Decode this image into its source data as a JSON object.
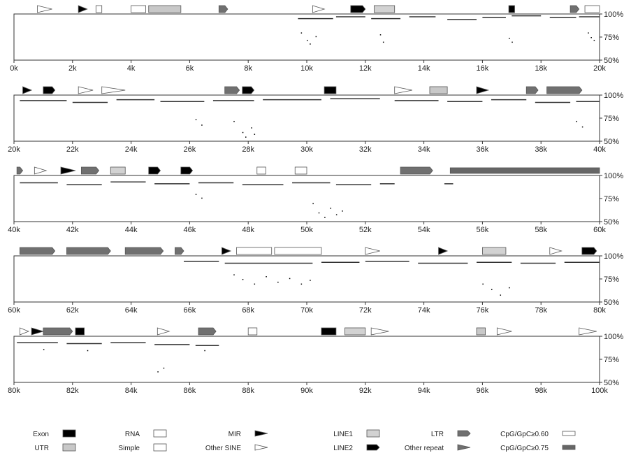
{
  "colors": {
    "exon": "#000000",
    "utr": "#c8c8c8",
    "rna": "#ffffff",
    "simple": "#ffffff",
    "mir": "#000000",
    "other_sine": "#ffffff",
    "line1": "#d2d2d2",
    "line2": "#000000",
    "ltr": "#707070",
    "other_repeat": "#707070",
    "cpg_060": "#ffffff",
    "cpg_075": "#666666",
    "outline": "#555555",
    "dot": "#000000"
  },
  "legend": {
    "col1": [
      "Exon",
      "UTR"
    ],
    "col2": [
      "RNA",
      "Simple"
    ],
    "col3": [
      "MIR",
      "Other SINE"
    ],
    "col4": [
      "LINE1",
      "LINE2"
    ],
    "col5": [
      "LTR",
      "Other repeat"
    ],
    "col6": [
      "CpG/GpC≥0.60",
      "CpG/GpC≥0.75"
    ]
  },
  "chart_data": {
    "type": "scatter",
    "title": "",
    "xlabel": "",
    "ylabel": "",
    "x_unit": "k",
    "ylim": [
      50,
      100
    ],
    "y_ticks": [
      "100%",
      "75%",
      "50%"
    ],
    "panels": [
      {
        "xlim": [
          0,
          20
        ],
        "x_ticks": [
          "0k",
          "2k",
          "4k",
          "6k",
          "8k",
          "10k",
          "12k",
          "14k",
          "16k",
          "18k",
          "20k"
        ],
        "segments": [
          [
            9.7,
            10.9,
            95
          ],
          [
            11.0,
            12.0,
            97
          ],
          [
            12.2,
            13.2,
            95
          ],
          [
            13.5,
            14.4,
            97
          ],
          [
            14.8,
            15.8,
            94
          ],
          [
            16.0,
            16.8,
            96
          ],
          [
            17.0,
            18.0,
            98
          ],
          [
            18.3,
            19.2,
            96
          ],
          [
            19.3,
            20,
            97
          ]
        ],
        "scatter": [
          [
            9.8,
            80
          ],
          [
            10.0,
            72
          ],
          [
            10.1,
            68
          ],
          [
            10.3,
            76
          ],
          [
            12.5,
            78
          ],
          [
            12.6,
            70
          ],
          [
            16.9,
            74
          ],
          [
            17.0,
            70
          ],
          [
            19.6,
            80
          ],
          [
            19.7,
            75
          ],
          [
            19.8,
            72
          ]
        ],
        "features": [
          {
            "x": [
              0.8,
              1.3
            ],
            "type": "other_sine"
          },
          {
            "x": [
              2.2,
              2.5
            ],
            "type": "mir"
          },
          {
            "x": [
              2.8,
              3.0
            ],
            "type": "rna"
          },
          {
            "x": [
              4.0,
              4.5
            ],
            "type": "rna"
          },
          {
            "x": [
              4.6,
              5.7
            ],
            "type": "utr"
          },
          {
            "x": [
              7.0,
              7.3
            ],
            "type": "ltr"
          },
          {
            "x": [
              10.2,
              10.6
            ],
            "type": "other_sine"
          },
          {
            "x": [
              11.5,
              12.0
            ],
            "type": "line2"
          },
          {
            "x": [
              12.3,
              13.0
            ],
            "type": "line1"
          },
          {
            "x": [
              16.9,
              17.1
            ],
            "type": "exon"
          },
          {
            "x": [
              19.0,
              19.3
            ],
            "type": "ltr"
          },
          {
            "x": [
              19.5,
              20.0
            ],
            "type": "rna"
          }
        ]
      },
      {
        "xlim": [
          20,
          40
        ],
        "x_ticks": [
          "20k",
          "22k",
          "24k",
          "26k",
          "28k",
          "30k",
          "32k",
          "34k",
          "36k",
          "38k",
          "40k"
        ],
        "segments": [
          [
            20.2,
            21.8,
            94
          ],
          [
            22.0,
            23.2,
            92
          ],
          [
            23.5,
            24.8,
            95
          ],
          [
            25.0,
            26.5,
            93
          ],
          [
            26.8,
            28.2,
            94
          ],
          [
            28.5,
            30.5,
            95
          ],
          [
            30.8,
            32.5,
            96
          ],
          [
            33.0,
            34.5,
            94
          ],
          [
            34.8,
            36.0,
            93
          ],
          [
            36.3,
            37.5,
            95
          ],
          [
            37.8,
            39.0,
            92
          ],
          [
            39.2,
            40,
            93
          ]
        ],
        "scatter": [
          [
            26.2,
            74
          ],
          [
            26.4,
            68
          ],
          [
            27.5,
            72
          ],
          [
            27.8,
            60
          ],
          [
            27.9,
            55
          ],
          [
            28.1,
            65
          ],
          [
            28.2,
            58
          ],
          [
            39.2,
            72
          ],
          [
            39.4,
            66
          ]
        ],
        "features": [
          {
            "x": [
              20.3,
              20.6
            ],
            "type": "mir"
          },
          {
            "x": [
              21.0,
              21.4
            ],
            "type": "line2"
          },
          {
            "x": [
              22.2,
              22.7
            ],
            "type": "other_sine"
          },
          {
            "x": [
              23.0,
              23.8
            ],
            "type": "other_sine"
          },
          {
            "x": [
              27.2,
              27.7
            ],
            "type": "ltr"
          },
          {
            "x": [
              27.8,
              28.2
            ],
            "type": "line2"
          },
          {
            "x": [
              30.6,
              31.0
            ],
            "type": "exon"
          },
          {
            "x": [
              33.0,
              33.6
            ],
            "type": "other_sine"
          },
          {
            "x": [
              34.2,
              34.8
            ],
            "type": "utr"
          },
          {
            "x": [
              35.8,
              36.2
            ],
            "type": "mir"
          },
          {
            "x": [
              37.5,
              37.9
            ],
            "type": "ltr"
          },
          {
            "x": [
              38.2,
              39.4
            ],
            "type": "ltr"
          }
        ]
      },
      {
        "xlim": [
          40,
          60
        ],
        "x_ticks": [
          "40k",
          "42k",
          "44k",
          "46k",
          "48k",
          "50k",
          "52k",
          "54k",
          "56k",
          "58k",
          "60k"
        ],
        "segments": [
          [
            40.2,
            41.5,
            92
          ],
          [
            41.8,
            43.0,
            90
          ],
          [
            43.3,
            44.5,
            93
          ],
          [
            44.8,
            46.0,
            91
          ],
          [
            46.3,
            47.5,
            92
          ],
          [
            47.8,
            49.2,
            90
          ],
          [
            49.5,
            50.8,
            92
          ],
          [
            51.0,
            52.2,
            90
          ],
          [
            52.5,
            53.0,
            91
          ],
          [
            54.7,
            55.0,
            91
          ]
        ],
        "scatter": [
          [
            50.2,
            70
          ],
          [
            50.4,
            60
          ],
          [
            50.6,
            55
          ],
          [
            50.8,
            65
          ],
          [
            51.0,
            58
          ],
          [
            51.2,
            62
          ],
          [
            46.2,
            80
          ],
          [
            46.4,
            76
          ]
        ],
        "features": [
          {
            "x": [
              40.1,
              40.3
            ],
            "type": "ltr"
          },
          {
            "x": [
              40.7,
              41.1
            ],
            "type": "other_sine"
          },
          {
            "x": [
              41.6,
              42.1
            ],
            "type": "mir"
          },
          {
            "x": [
              42.3,
              42.9
            ],
            "type": "ltr"
          },
          {
            "x": [
              43.3,
              43.8
            ],
            "type": "line1"
          },
          {
            "x": [
              44.6,
              45.0
            ],
            "type": "line2"
          },
          {
            "x": [
              45.7,
              46.1
            ],
            "type": "line2"
          },
          {
            "x": [
              48.3,
              48.6
            ],
            "type": "simple"
          },
          {
            "x": [
              49.6,
              50.0
            ],
            "type": "simple"
          },
          {
            "x": [
              53.2,
              54.3
            ],
            "type": "ltr"
          },
          {
            "x": [
              54.9,
              60.0
            ],
            "type": "cpg_075"
          }
        ]
      },
      {
        "xlim": [
          60,
          80
        ],
        "x_ticks": [
          "60k",
          "62k",
          "64k",
          "66k",
          "68k",
          "70k",
          "72k",
          "74k",
          "76k",
          "78k",
          "80k"
        ],
        "segments": [
          [
            65.8,
            67.0,
            94
          ],
          [
            67.2,
            70.2,
            92
          ],
          [
            70.5,
            71.8,
            93
          ],
          [
            72.0,
            73.5,
            94
          ],
          [
            73.8,
            75.5,
            92
          ],
          [
            75.8,
            77.0,
            93
          ],
          [
            77.3,
            78.5,
            92
          ],
          [
            78.8,
            80,
            93
          ]
        ],
        "scatter": [
          [
            67.5,
            80
          ],
          [
            67.8,
            75
          ],
          [
            68.2,
            70
          ],
          [
            68.6,
            78
          ],
          [
            69.0,
            72
          ],
          [
            69.4,
            76
          ],
          [
            69.8,
            70
          ],
          [
            70.1,
            74
          ],
          [
            76.0,
            70
          ],
          [
            76.3,
            64
          ],
          [
            76.6,
            58
          ],
          [
            76.9,
            66
          ]
        ],
        "features": [
          {
            "x": [
              60.2,
              61.4
            ],
            "type": "ltr"
          },
          {
            "x": [
              61.8,
              63.3
            ],
            "type": "ltr"
          },
          {
            "x": [
              63.8,
              65.1
            ],
            "type": "ltr"
          },
          {
            "x": [
              65.5,
              65.8
            ],
            "type": "ltr"
          },
          {
            "x": [
              67.1,
              67.4
            ],
            "type": "mir"
          },
          {
            "x": [
              67.6,
              68.8
            ],
            "type": "simple"
          },
          {
            "x": [
              68.9,
              70.5
            ],
            "type": "simple"
          },
          {
            "x": [
              72.0,
              72.5
            ],
            "type": "other_sine"
          },
          {
            "x": [
              74.5,
              74.8
            ],
            "type": "mir"
          },
          {
            "x": [
              76.0,
              76.8
            ],
            "type": "line1"
          },
          {
            "x": [
              78.3,
              78.7
            ],
            "type": "other_sine"
          },
          {
            "x": [
              79.4,
              79.9
            ],
            "type": "line2"
          }
        ]
      },
      {
        "xlim": [
          80,
          100
        ],
        "x_ticks": [
          "80k",
          "82k",
          "84k",
          "86k",
          "88k",
          "90k",
          "92k",
          "94k",
          "96k",
          "98k",
          "100k"
        ],
        "segments": [
          [
            80.1,
            81.5,
            93
          ],
          [
            81.8,
            83.0,
            92
          ],
          [
            83.3,
            84.5,
            93
          ],
          [
            84.8,
            86.0,
            91
          ],
          [
            86.2,
            87.0,
            90
          ]
        ],
        "scatter": [
          [
            81.0,
            86
          ],
          [
            82.5,
            85
          ],
          [
            84.9,
            62
          ],
          [
            85.1,
            66
          ],
          [
            86.5,
            85
          ]
        ],
        "features": [
          {
            "x": [
              80.2,
              80.5
            ],
            "type": "other_sine"
          },
          {
            "x": [
              80.6,
              81.0
            ],
            "type": "mir"
          },
          {
            "x": [
              81.0,
              82.0
            ],
            "type": "ltr"
          },
          {
            "x": [
              82.1,
              82.4
            ],
            "type": "exon"
          },
          {
            "x": [
              84.9,
              85.3
            ],
            "type": "other_sine"
          },
          {
            "x": [
              86.3,
              86.9
            ],
            "type": "ltr"
          },
          {
            "x": [
              88.0,
              88.3
            ],
            "type": "simple"
          },
          {
            "x": [
              90.5,
              91.0
            ],
            "type": "exon"
          },
          {
            "x": [
              91.3,
              92.0
            ],
            "type": "line1"
          },
          {
            "x": [
              92.2,
              92.8
            ],
            "type": "other_sine"
          },
          {
            "x": [
              95.8,
              96.1
            ],
            "type": "utr"
          },
          {
            "x": [
              96.5,
              97.0
            ],
            "type": "other_sine"
          },
          {
            "x": [
              99.3,
              99.9
            ],
            "type": "other_sine"
          }
        ]
      }
    ]
  }
}
